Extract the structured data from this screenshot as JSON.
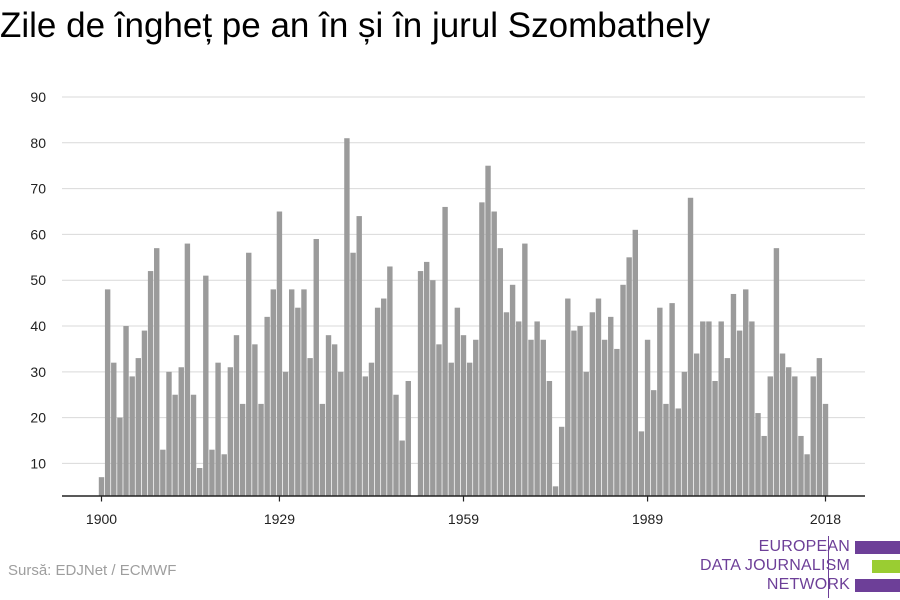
{
  "title": "Zile de îngheț pe an în și în jurul Szombathely",
  "source": "Sursă: EDJNet / ECMWF",
  "logo": {
    "lines": [
      "EUROPEAN",
      "DATA JOURNALISM",
      "NETWORK"
    ],
    "colors": {
      "text": "#6d3f98",
      "bar_purple": "#6d3f98",
      "bar_green": "#9acd32"
    }
  },
  "colors": {
    "bar": "#9b9b9b",
    "grid": "#d9d9d9",
    "axis": "#222222"
  },
  "chart_data": {
    "type": "bar",
    "x_start": 1900,
    "x_end": 2018,
    "xticks": [
      1900,
      1929,
      1959,
      1989,
      2018
    ],
    "yticks": [
      10,
      20,
      30,
      40,
      50,
      60,
      70,
      80,
      90
    ],
    "ylim": [
      3,
      90
    ],
    "grid": "horizontal",
    "legend": "none",
    "values": [
      7,
      48,
      32,
      20,
      40,
      29,
      33,
      39,
      52,
      57,
      13,
      30,
      25,
      31,
      58,
      25,
      9,
      51,
      13,
      32,
      12,
      31,
      38,
      23,
      56,
      36,
      23,
      42,
      48,
      65,
      30,
      48,
      44,
      48,
      33,
      59,
      23,
      38,
      36,
      30,
      81,
      56,
      64,
      29,
      32,
      44,
      46,
      53,
      25,
      15,
      28,
      3,
      52,
      54,
      50,
      36,
      66,
      32,
      44,
      38,
      32,
      37,
      67,
      75,
      65,
      57,
      43,
      49,
      41,
      58,
      37,
      41,
      37,
      28,
      5,
      18,
      46,
      39,
      40,
      30,
      43,
      46,
      37,
      42,
      35,
      49,
      55,
      61,
      17,
      37,
      26,
      44,
      23,
      45,
      22,
      30,
      68,
      34,
      41,
      41,
      28,
      41,
      33,
      47,
      39,
      48,
      41,
      21,
      16,
      29,
      57,
      34,
      31,
      29,
      16,
      12,
      29,
      33,
      23
    ]
  }
}
